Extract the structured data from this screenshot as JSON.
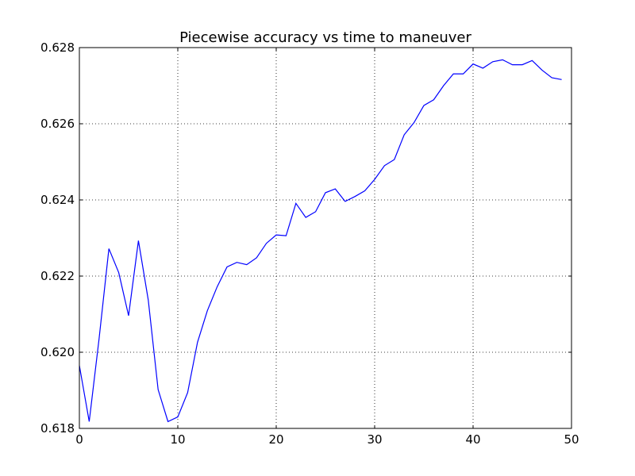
{
  "chart_data": {
    "type": "line",
    "title": "Piecewise accuracy vs time to maneuver",
    "xlabel": "",
    "ylabel": "",
    "xlim": [
      0,
      50
    ],
    "ylim": [
      0.618,
      0.628
    ],
    "xticks": [
      0,
      10,
      20,
      30,
      40,
      50
    ],
    "yticks": [
      0.618,
      0.62,
      0.622,
      0.624,
      0.626,
      0.628
    ],
    "xtick_labels": [
      "0",
      "10",
      "20",
      "30",
      "40",
      "50"
    ],
    "ytick_labels": [
      "0.618",
      "0.620",
      "0.622",
      "0.624",
      "0.626",
      "0.628"
    ],
    "grid": true,
    "line_color": "#0000ff",
    "series": [
      {
        "x": [
          0,
          1,
          2,
          3,
          4,
          5,
          6,
          7,
          8,
          9,
          10,
          11,
          12,
          13,
          14,
          15,
          16,
          17,
          18,
          19,
          20,
          21,
          22,
          23,
          24,
          25,
          26,
          27,
          28,
          29,
          30,
          31,
          32,
          33,
          34,
          35,
          36,
          37,
          38,
          39,
          40,
          41,
          42,
          43,
          44,
          45,
          46,
          47,
          48,
          49
        ],
        "values": [
          0.61965,
          0.61818,
          0.62035,
          0.62272,
          0.62209,
          0.62096,
          0.62293,
          0.62137,
          0.61902,
          0.61818,
          0.6183,
          0.61894,
          0.62026,
          0.62109,
          0.62172,
          0.62224,
          0.62236,
          0.6223,
          0.62248,
          0.62286,
          0.62308,
          0.62306,
          0.62391,
          0.62354,
          0.62369,
          0.62419,
          0.62429,
          0.62396,
          0.62409,
          0.62424,
          0.62454,
          0.6249,
          0.62506,
          0.62571,
          0.62603,
          0.62648,
          0.62663,
          0.627,
          0.62731,
          0.62731,
          0.62757,
          0.62746,
          0.62763,
          0.62768,
          0.62755,
          0.62755,
          0.62766,
          0.62741,
          0.62721,
          0.62716
        ]
      }
    ]
  }
}
